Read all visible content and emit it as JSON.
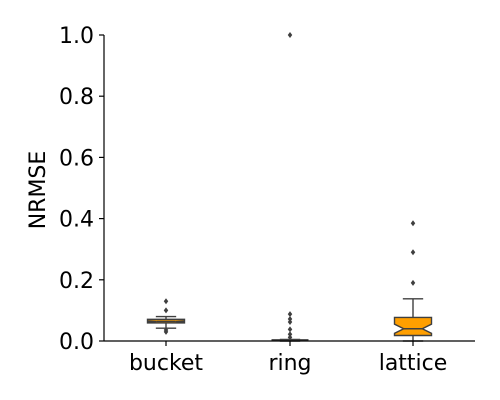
{
  "chart_data": {
    "type": "boxplot",
    "title": "",
    "xlabel": "",
    "ylabel": "NRMSE",
    "ylim": [
      0.0,
      1.0
    ],
    "yticks": [
      "0.0",
      "0.2",
      "0.4",
      "0.6",
      "0.8",
      "1.0"
    ],
    "grid": false,
    "notched": true,
    "box_color": "#ff9f00",
    "line_color": "#3f3f3f",
    "categories": [
      "bucket",
      "ring",
      "lattice"
    ],
    "series": [
      {
        "category": "bucket",
        "whislo": 0.042,
        "q1": 0.059,
        "median": 0.064,
        "q3": 0.071,
        "whishi": 0.08,
        "notch_lo": 0.062,
        "notch_hi": 0.066,
        "fliers": [
          0.03,
          0.036,
          0.1,
          0.13
        ]
      },
      {
        "category": "ring",
        "whislo": 0.0,
        "q1": 0.002,
        "median": 0.003,
        "q3": 0.004,
        "whishi": 0.005,
        "notch_lo": 0.002,
        "notch_hi": 0.004,
        "fliers": [
          0.012,
          0.022,
          0.038,
          0.062,
          0.072,
          0.088,
          1.0
        ]
      },
      {
        "category": "lattice",
        "whislo": 0.0,
        "q1": 0.018,
        "median": 0.04,
        "q3": 0.077,
        "whishi": 0.138,
        "notch_lo": 0.025,
        "notch_hi": 0.055,
        "fliers": [
          0.19,
          0.29,
          0.385
        ]
      }
    ]
  }
}
